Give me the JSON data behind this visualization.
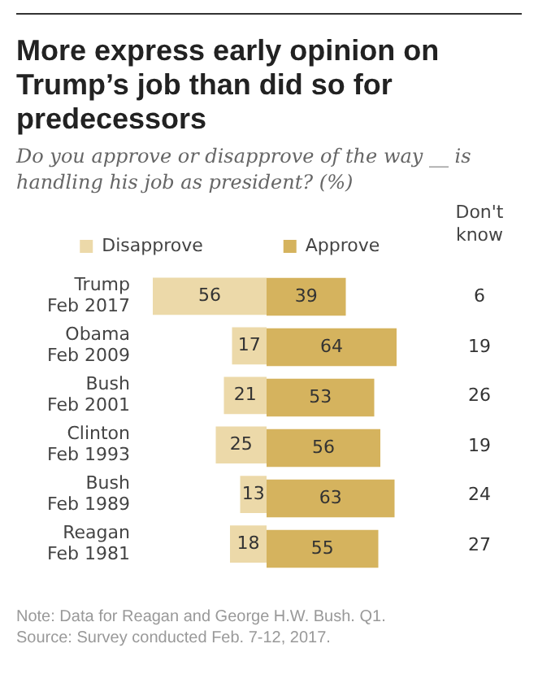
{
  "chart_data": [
    {
      "type": "bar",
      "orientation": "horizontal",
      "title": "More express early opinion on Trump’s job than did so for predecessors",
      "subtitle": "Do you approve or disapprove of the way __ is handling his job as president? (%)",
      "categories": [
        "Trump\nFeb 2017",
        "Obama\nFeb 2009",
        "Bush\nFeb 2001",
        "Clinton\nFeb 1993",
        "Bush\nFeb 1989",
        "Reagan\nFeb 1981"
      ],
      "series": [
        {
          "name": "Disapprove",
          "color": "#ecd9a9",
          "values": [
            56,
            17,
            21,
            25,
            13,
            18
          ]
        }
      ],
      "xlim": [
        56,
        0
      ],
      "data_labels": true,
      "tick_labels": "y",
      "legend": "top"
    },
    {
      "type": "bar",
      "orientation": "horizontal",
      "categories": [
        null,
        null,
        null,
        null,
        null,
        null
      ],
      "series": [
        {
          "name": "Approve",
          "color": "#d5b35e",
          "values": [
            39,
            64,
            53,
            56,
            63,
            55
          ]
        }
      ],
      "xlim": [
        0,
        64
      ],
      "data_labels": true,
      "tick_labels": false,
      "legend": "top"
    },
    {
      "type": "other",
      "title": "Don't know",
      "values": [
        6,
        19,
        26,
        19,
        24,
        27
      ],
      "data_labels": true,
      "annotations": [
        "Note: Data for Reagan and George H.W. Bush. Q1.",
        "Source: Survey conducted Feb. 7-12, 2017."
      ]
    }
  ]
}
